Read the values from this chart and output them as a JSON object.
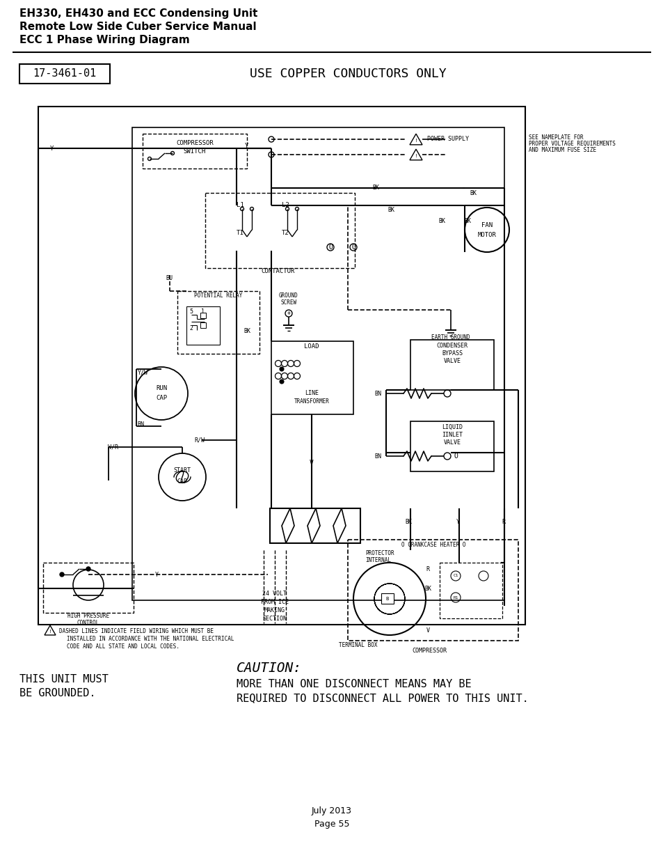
{
  "title_line1": "EH330, EH430 and ECC Condensing Unit",
  "title_line2": "Remote Low Side Cuber Service Manual",
  "title_line3": "ECC 1 Phase Wiring Diagram",
  "part_number": "17-3461-01",
  "header_text": "USE COPPER CONDUCTORS ONLY",
  "footer_date": "July 2013",
  "footer_page": "Page 55",
  "bg_color": "#ffffff",
  "line_color": "#000000"
}
